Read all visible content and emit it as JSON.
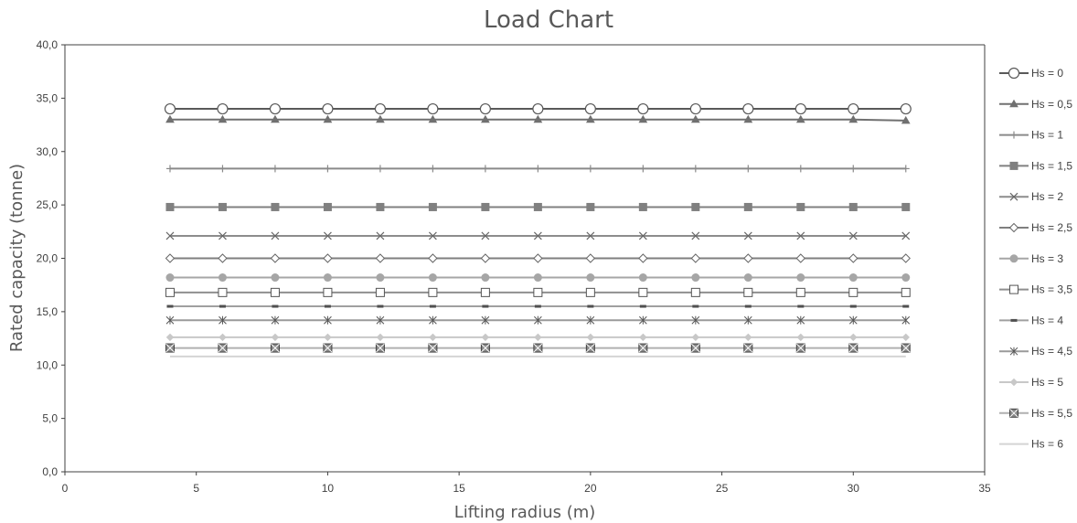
{
  "chart_data": {
    "type": "line",
    "title": "Load Chart",
    "xlabel": "Lifting radius (m)",
    "ylabel": "Rated capacity (tonne)",
    "xlim": [
      0,
      35
    ],
    "ylim": [
      0,
      40
    ],
    "x_ticks": [
      "0",
      "5",
      "10",
      "15",
      "20",
      "25",
      "30",
      "35"
    ],
    "y_ticks": [
      "0,0",
      "5,0",
      "10,0",
      "15,0",
      "20,0",
      "25,0",
      "30,0",
      "35,0",
      "40,0"
    ],
    "grid": false,
    "legend_position": "right",
    "x": [
      4,
      6,
      8,
      10,
      12,
      14,
      16,
      18,
      20,
      22,
      24,
      26,
      28,
      30,
      32
    ],
    "series": [
      {
        "name": "Hs = 0",
        "marker": "circle-open",
        "color": "#595959",
        "values": [
          34,
          34,
          34,
          34,
          34,
          34,
          34,
          34,
          34,
          34,
          34,
          34,
          34,
          34,
          34
        ]
      },
      {
        "name": "Hs = 0,5",
        "marker": "triangle",
        "color": "#707070",
        "values": [
          33,
          33,
          33,
          33,
          33,
          33,
          33,
          33,
          33,
          33,
          33,
          33,
          33,
          33,
          32.9
        ]
      },
      {
        "name": "Hs = 1",
        "marker": "plus",
        "color": "#8a8a8a",
        "values": [
          28.4,
          28.4,
          28.4,
          28.4,
          28.4,
          28.4,
          28.4,
          28.4,
          28.4,
          28.4,
          28.4,
          28.4,
          28.4,
          28.4,
          28.4
        ]
      },
      {
        "name": "Hs = 1,5",
        "marker": "square",
        "color": "#808080",
        "values": [
          24.8,
          24.8,
          24.8,
          24.8,
          24.8,
          24.8,
          24.8,
          24.8,
          24.8,
          24.8,
          24.8,
          24.8,
          24.8,
          24.8,
          24.8
        ]
      },
      {
        "name": "Hs = 2",
        "marker": "x",
        "color": "#8c8c8c",
        "values": [
          22.1,
          22.1,
          22.1,
          22.1,
          22.1,
          22.1,
          22.1,
          22.1,
          22.1,
          22.1,
          22.1,
          22.1,
          22.1,
          22.1,
          22.1
        ]
      },
      {
        "name": "Hs = 2,5",
        "marker": "diamond-open",
        "color": "#7f7f7f",
        "values": [
          20,
          20,
          20,
          20,
          20,
          20,
          20,
          20,
          20,
          20,
          20,
          20,
          20,
          20,
          20
        ]
      },
      {
        "name": "Hs = 3",
        "marker": "circle",
        "color": "#a6a6a6",
        "values": [
          18.2,
          18.2,
          18.2,
          18.2,
          18.2,
          18.2,
          18.2,
          18.2,
          18.2,
          18.2,
          18.2,
          18.2,
          18.2,
          18.2,
          18.2
        ]
      },
      {
        "name": "Hs = 3,5",
        "marker": "square-open",
        "color": "#8f8f8f",
        "values": [
          16.8,
          16.8,
          16.8,
          16.8,
          16.8,
          16.8,
          16.8,
          16.8,
          16.8,
          16.8,
          16.8,
          16.8,
          16.8,
          16.8,
          16.8
        ]
      },
      {
        "name": "Hs = 4",
        "marker": "dash",
        "color": "#a0a0a0",
        "values": [
          15.5,
          15.5,
          15.5,
          15.5,
          15.5,
          15.5,
          15.5,
          15.5,
          15.5,
          15.5,
          15.5,
          15.5,
          15.5,
          15.5,
          15.5
        ]
      },
      {
        "name": "Hs = 4,5",
        "marker": "star",
        "color": "#9a9a9a",
        "values": [
          14.2,
          14.2,
          14.2,
          14.2,
          14.2,
          14.2,
          14.2,
          14.2,
          14.2,
          14.2,
          14.2,
          14.2,
          14.2,
          14.2,
          14.2
        ]
      },
      {
        "name": "Hs = 5",
        "marker": "diamond",
        "color": "#c8c8c8",
        "values": [
          12.6,
          12.6,
          12.6,
          12.6,
          12.6,
          12.6,
          12.6,
          12.6,
          12.6,
          12.6,
          12.6,
          12.6,
          12.6,
          12.6,
          12.6
        ]
      },
      {
        "name": "Hs = 5,5",
        "marker": "square-x",
        "color": "#b0b0b0",
        "values": [
          11.6,
          11.6,
          11.6,
          11.6,
          11.6,
          11.6,
          11.6,
          11.6,
          11.6,
          11.6,
          11.6,
          11.6,
          11.6,
          11.6,
          11.6
        ]
      },
      {
        "name": "Hs = 6",
        "marker": "none",
        "color": "#d4d4d4",
        "values": [
          10.8,
          10.8,
          10.8,
          10.8,
          10.8,
          10.8,
          10.8,
          10.8,
          10.8,
          10.8,
          10.8,
          10.8,
          10.8,
          10.8,
          10.8
        ]
      }
    ]
  }
}
